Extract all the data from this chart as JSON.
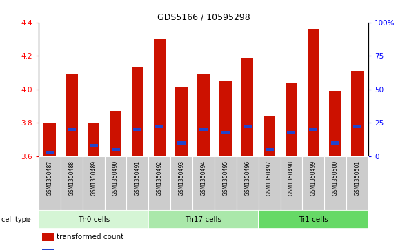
{
  "title": "GDS5166 / 10595298",
  "samples": [
    "GSM1350487",
    "GSM1350488",
    "GSM1350489",
    "GSM1350490",
    "GSM1350491",
    "GSM1350492",
    "GSM1350493",
    "GSM1350494",
    "GSM1350495",
    "GSM1350496",
    "GSM1350497",
    "GSM1350498",
    "GSM1350499",
    "GSM1350500",
    "GSM1350501"
  ],
  "transformed_counts": [
    3.8,
    4.09,
    3.8,
    3.87,
    4.13,
    4.3,
    4.01,
    4.09,
    4.05,
    4.19,
    3.84,
    4.04,
    4.36,
    3.99,
    4.11
  ],
  "percentile_ranks": [
    3,
    20,
    8,
    5,
    20,
    22,
    10,
    20,
    18,
    22,
    5,
    18,
    20,
    10,
    22
  ],
  "cell_types": [
    {
      "label": "Th0 cells",
      "start": 0,
      "end": 5,
      "color": "#d5f5d5"
    },
    {
      "label": "Th17 cells",
      "start": 5,
      "end": 10,
      "color": "#aae8aa"
    },
    {
      "label": "Tr1 cells",
      "start": 10,
      "end": 15,
      "color": "#66d966"
    }
  ],
  "ylim_left": [
    3.6,
    4.4
  ],
  "ylim_right": [
    0,
    100
  ],
  "bar_color": "#cc1100",
  "percentile_color": "#2244cc",
  "label_bg_color": "#cccccc",
  "grid_color": "black",
  "left_yticks": [
    3.6,
    3.8,
    4.0,
    4.2,
    4.4
  ],
  "right_yticks": [
    0,
    25,
    50,
    75,
    100
  ],
  "right_yticklabels": [
    "0",
    "25",
    "50",
    "75",
    "100%"
  ]
}
